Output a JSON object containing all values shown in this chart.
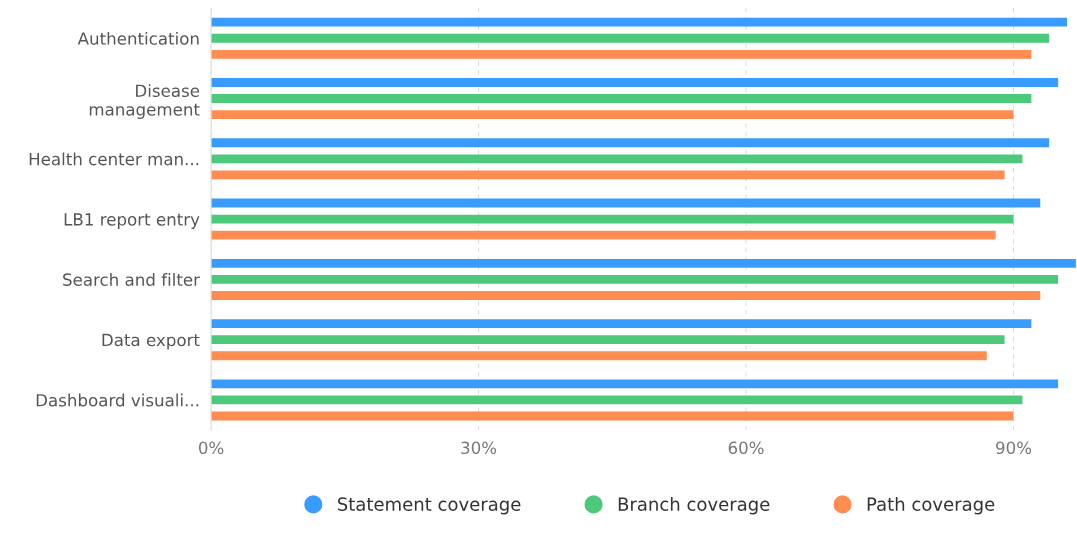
{
  "chart_data": {
    "type": "bar",
    "orientation": "horizontal",
    "categories": [
      "Authentication",
      "Disease\nmanagement",
      "Health center man...",
      "LB1 report entry",
      "Search and filter",
      "Data export",
      "Dashboard visuali..."
    ],
    "series": [
      {
        "name": "Statement coverage",
        "color": "#3a9bff",
        "values": [
          96,
          95,
          94,
          93,
          97,
          92,
          95
        ]
      },
      {
        "name": "Branch coverage",
        "color": "#4cc97a",
        "values": [
          94,
          92,
          91,
          90,
          95,
          89,
          91
        ]
      },
      {
        "name": "Path coverage",
        "color": "#ff8c50",
        "values": [
          92,
          90,
          89,
          88,
          93,
          87,
          90
        ]
      }
    ],
    "xlim": [
      0,
      97
    ],
    "xticks": [
      {
        "value": 0,
        "label": "0%"
      },
      {
        "value": 30,
        "label": "30%"
      },
      {
        "value": 60,
        "label": "60%"
      },
      {
        "value": 90,
        "label": "90%"
      }
    ],
    "grid": "x",
    "legend": "bottom"
  }
}
